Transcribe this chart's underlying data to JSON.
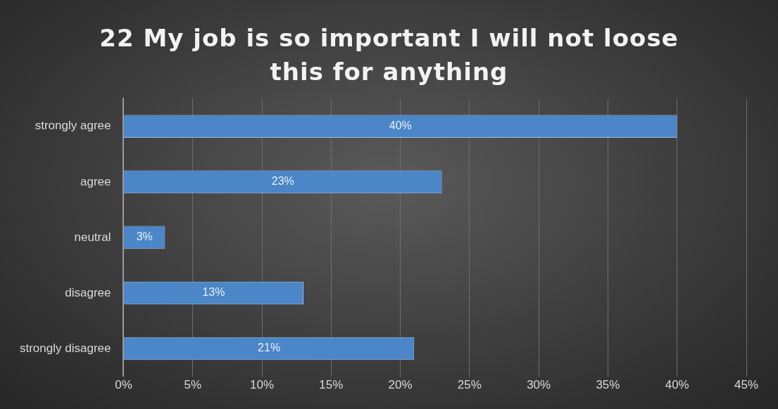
{
  "chart_data": {
    "type": "bar",
    "orientation": "horizontal",
    "title": "22 My job is so important I will not loose this for anything",
    "categories": [
      "strongly agree",
      "agree",
      "neutral",
      "disagree",
      "strongly disagree"
    ],
    "values": [
      40,
      23,
      3,
      13,
      21
    ],
    "value_labels": [
      "40%",
      "23%",
      "3%",
      "13%",
      "21%"
    ],
    "color": "#4a86c8",
    "xlim": [
      0,
      45
    ],
    "xticks": [
      {
        "value": 0,
        "label": "0%"
      },
      {
        "value": 5,
        "label": "5%"
      },
      {
        "value": 10,
        "label": "10%"
      },
      {
        "value": 15,
        "label": "15%"
      },
      {
        "value": 20,
        "label": "20%"
      },
      {
        "value": 25,
        "label": "25%"
      },
      {
        "value": 30,
        "label": "30%"
      },
      {
        "value": 35,
        "label": "35%"
      },
      {
        "value": 40,
        "label": "40%"
      },
      {
        "value": 45,
        "label": "45%"
      }
    ],
    "grid": "x",
    "legend": false
  }
}
